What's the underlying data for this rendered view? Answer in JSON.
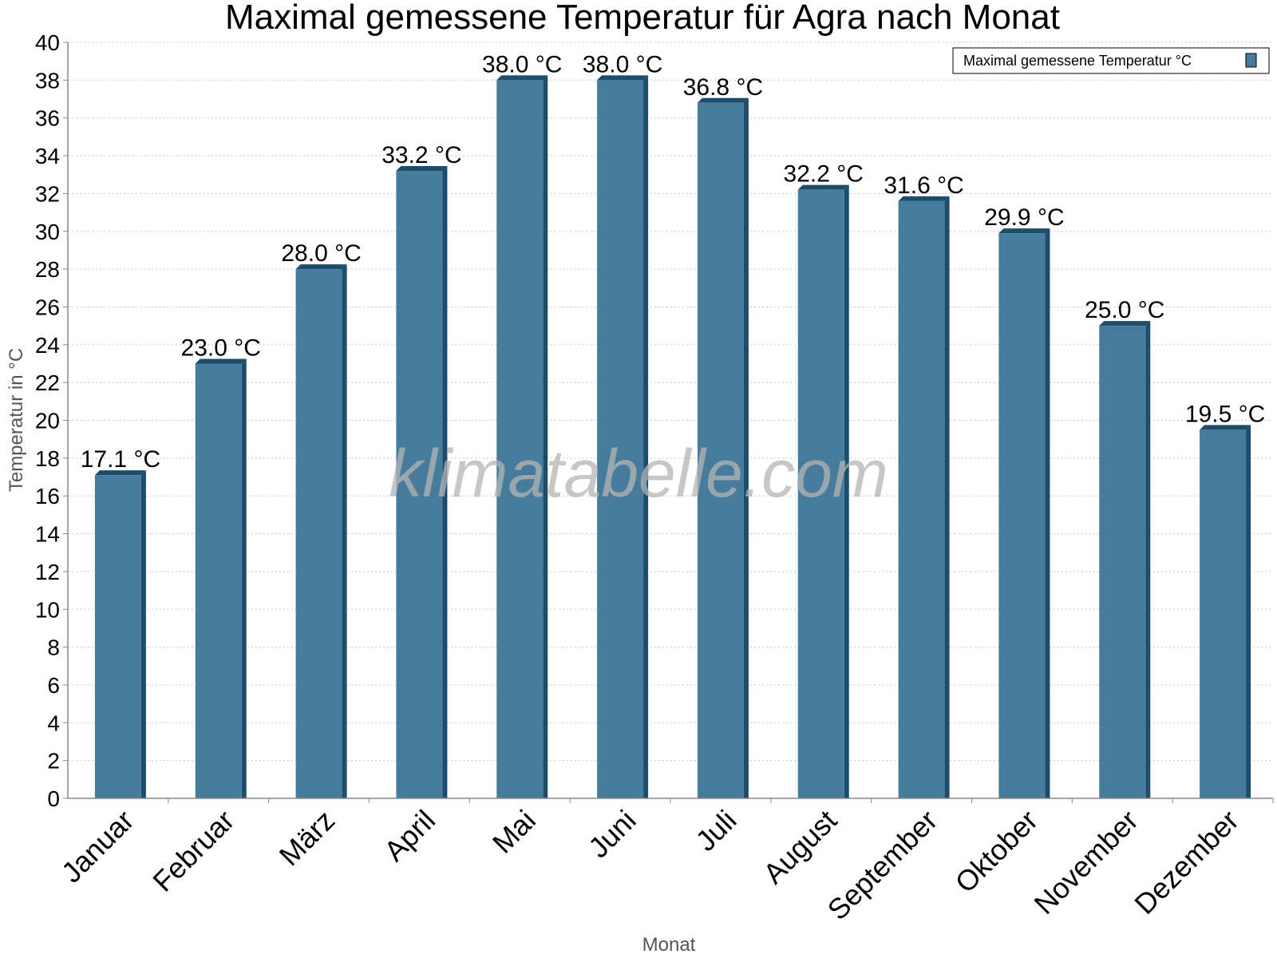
{
  "chart_data": {
    "type": "bar",
    "title": "Maximal gemessene Temperatur für Agra nach Monat",
    "xlabel": "Monat",
    "ylabel": "Temperatur in °C",
    "ylim": [
      0,
      40
    ],
    "ytick_step": 2,
    "grid": true,
    "legend_position": "top-right",
    "categories": [
      "Januar",
      "Februar",
      "März",
      "April",
      "Mai",
      "Juni",
      "Juli",
      "August",
      "September",
      "Oktober",
      "November",
      "Dezember"
    ],
    "series": [
      {
        "name": "Maximal gemessene Temperatur °C",
        "values": [
          17.1,
          23.0,
          28.0,
          33.2,
          38.0,
          38.0,
          36.8,
          32.2,
          31.6,
          29.9,
          25.0,
          19.5
        ],
        "labels": [
          "17.1 °C",
          "23.0 °C",
          "28.0 °C",
          "33.2 °C",
          "38.0 °C",
          "38.0 °C",
          "36.8 °C",
          "32.2 °C",
          "31.6 °C",
          "29.9 °C",
          "25.0 °C",
          "19.5 °C"
        ],
        "color": "#467b9c",
        "shade_color": "#1d4d6b"
      }
    ]
  },
  "watermark": "klimatabelle.com"
}
